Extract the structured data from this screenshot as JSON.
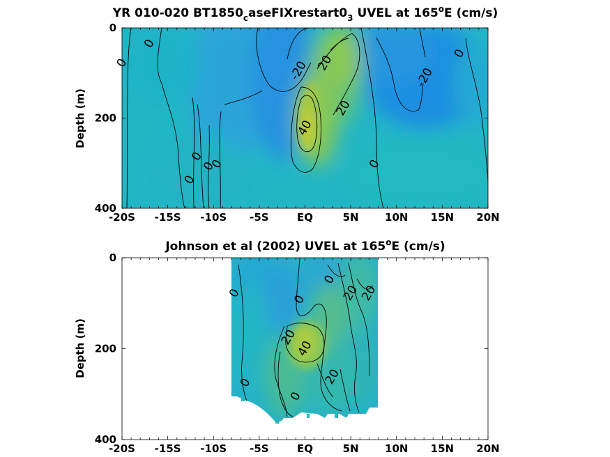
{
  "chart_data": [
    {
      "type": "heatmap",
      "title_main": "YR 010-020 BT1850",
      "title_sub1": "c",
      "title_mid": "aseFIXrestart0",
      "title_sub2": "3",
      "title_tail1": " UVEL at 165",
      "title_sup": "o",
      "title_tail2": "E (cm/s)",
      "ylabel": "Depth (m)",
      "xlim": [
        -20,
        20
      ],
      "ylim": [
        0,
        400
      ],
      "y_reversed": true,
      "x_ticks": [
        -20,
        -15,
        -10,
        -5,
        0,
        5,
        10,
        15,
        20
      ],
      "x_tick_labels": [
        "-20S",
        "-15S",
        "-10S",
        "-5S",
        "EQ",
        "5N",
        "10N",
        "15N",
        "20N"
      ],
      "y_ticks": [
        0,
        200,
        400
      ],
      "y_tick_labels": [
        "0",
        "200",
        "400"
      ],
      "colormap": "parula",
      "data_extent": {
        "lat": [
          -20,
          20
        ],
        "depth": [
          0,
          395
        ]
      },
      "contour_labels": [
        {
          "text": "0",
          "lat": -17.0,
          "depth": 35
        },
        {
          "text": "0",
          "lat": -20.0,
          "depth": 78
        },
        {
          "text": "-20",
          "lat": -0.7,
          "depth": 95
        },
        {
          "text": "20",
          "lat": 2.2,
          "depth": 78
        },
        {
          "text": "40",
          "lat": 0.0,
          "depth": 222
        },
        {
          "text": "20",
          "lat": 4.2,
          "depth": 178
        },
        {
          "text": "0",
          "lat": 7.6,
          "depth": 302
        },
        {
          "text": "0",
          "lat": 16.9,
          "depth": 57
        },
        {
          "text": "-20",
          "lat": 13.1,
          "depth": 110
        },
        {
          "text": "0",
          "lat": -11.8,
          "depth": 285
        },
        {
          "text": "0",
          "lat": -10.5,
          "depth": 307
        },
        {
          "text": "0",
          "lat": -9.6,
          "depth": 302
        },
        {
          "text": "0",
          "lat": -12.6,
          "depth": 337
        }
      ]
    },
    {
      "type": "heatmap",
      "title_main": "Johnson et al (2002) UVEL at 165",
      "title_sup": "o",
      "title_tail2": "E (cm/s)",
      "ylabel": "Depth (m)",
      "xlim": [
        -20,
        20
      ],
      "ylim": [
        0,
        400
      ],
      "y_reversed": true,
      "x_ticks": [
        -20,
        -15,
        -10,
        -5,
        0,
        5,
        10,
        15,
        20
      ],
      "x_tick_labels": [
        "-20S",
        "-15S",
        "-10S",
        "-5S",
        "EQ",
        "5N",
        "10N",
        "15N",
        "20N"
      ],
      "y_ticks": [
        0,
        200,
        400
      ],
      "y_tick_labels": [
        "0",
        "200",
        "400"
      ],
      "colormap": "parula",
      "data_extent": {
        "lat": [
          -8,
          8
        ],
        "depth": [
          0,
          365
        ]
      },
      "contour_labels": [
        {
          "text": "0",
          "lat": -7.7,
          "depth": 78
        },
        {
          "text": "0",
          "lat": -0.6,
          "depth": 92
        },
        {
          "text": "0",
          "lat": 2.7,
          "depth": 48
        },
        {
          "text": "20",
          "lat": 5.0,
          "depth": 78
        },
        {
          "text": "20",
          "lat": 7.0,
          "depth": 78
        },
        {
          "text": "20",
          "lat": -1.8,
          "depth": 175
        },
        {
          "text": "40",
          "lat": 0.0,
          "depth": 200
        },
        {
          "text": "20",
          "lat": 3.0,
          "depth": 262
        },
        {
          "text": "0",
          "lat": -6.5,
          "depth": 275
        },
        {
          "text": "0",
          "lat": -1.0,
          "depth": 305
        }
      ]
    }
  ]
}
